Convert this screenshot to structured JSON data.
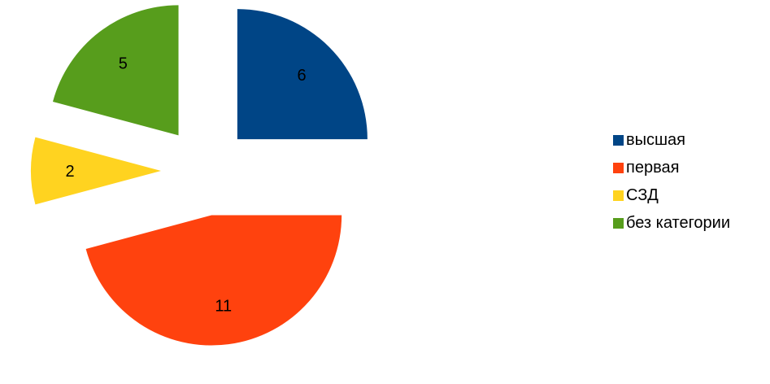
{
  "chart_data": {
    "type": "pie",
    "exploded": true,
    "categories": [
      "высшая",
      "первая",
      "СЗД",
      "без категории"
    ],
    "values": [
      6,
      11,
      2,
      5
    ],
    "colors": [
      "#004586",
      "#ff420e",
      "#ffd320",
      "#579d1c"
    ],
    "data_labels": [
      "6",
      "11",
      "2",
      "5"
    ],
    "legend_position": "right"
  }
}
